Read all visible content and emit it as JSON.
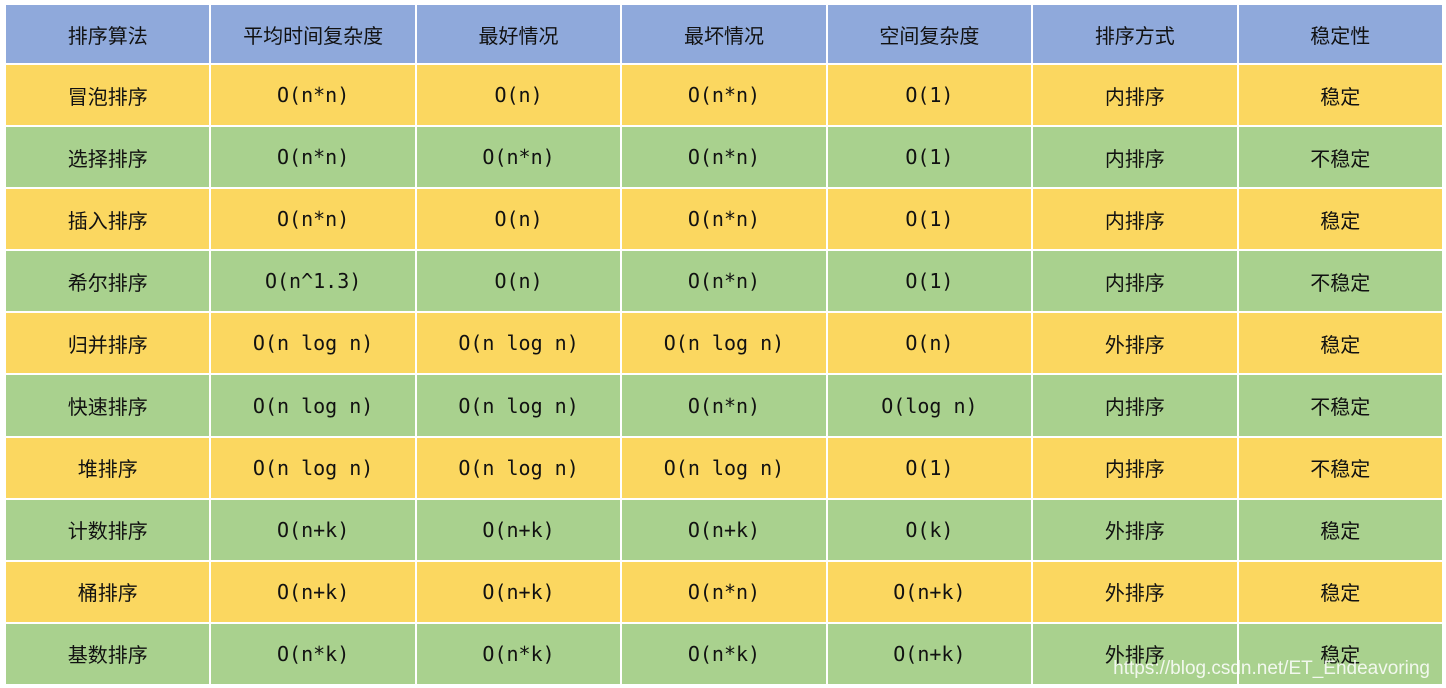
{
  "headers": [
    "排序算法",
    "平均时间复杂度",
    "最好情况",
    "最坏情况",
    "空间复杂度",
    "排序方式",
    "稳定性"
  ],
  "rows": [
    [
      "冒泡排序",
      "O(n*n)",
      "O(n)",
      "O(n*n)",
      "O(1)",
      "内排序",
      "稳定"
    ],
    [
      "选择排序",
      "O(n*n)",
      "O(n*n)",
      "O(n*n)",
      "O(1)",
      "内排序",
      "不稳定"
    ],
    [
      "插入排序",
      "O(n*n)",
      "O(n)",
      "O(n*n)",
      "O(1)",
      "内排序",
      "稳定"
    ],
    [
      "希尔排序",
      "O(n^1.3)",
      "O(n)",
      "O(n*n)",
      "O(1)",
      "内排序",
      "不稳定"
    ],
    [
      "归并排序",
      "O(n log n)",
      "O(n log n)",
      "O(n log n)",
      "O(n)",
      "外排序",
      "稳定"
    ],
    [
      "快速排序",
      "O(n log n)",
      "O(n log n)",
      "O(n*n)",
      "O(log n)",
      "内排序",
      "不稳定"
    ],
    [
      "堆排序",
      "O(n log n)",
      "O(n log n)",
      "O(n log n)",
      "O(1)",
      "内排序",
      "不稳定"
    ],
    [
      "计数排序",
      "O(n+k)",
      "O(n+k)",
      "O(n+k)",
      "O(k)",
      "外排序",
      "稳定"
    ],
    [
      "桶排序",
      "O(n+k)",
      "O(n+k)",
      "O(n*n)",
      "O(n+k)",
      "外排序",
      "稳定"
    ],
    [
      "基数排序",
      "O(n*k)",
      "O(n*k)",
      "O(n*k)",
      "O(n+k)",
      "外排序",
      "稳定"
    ]
  ],
  "watermark": "https://blog.csdn.net/ET_Endeavoring",
  "colors": {
    "header": "#8FA9DB",
    "row_yellow": "#FBD760",
    "row_green": "#A9D18E"
  }
}
